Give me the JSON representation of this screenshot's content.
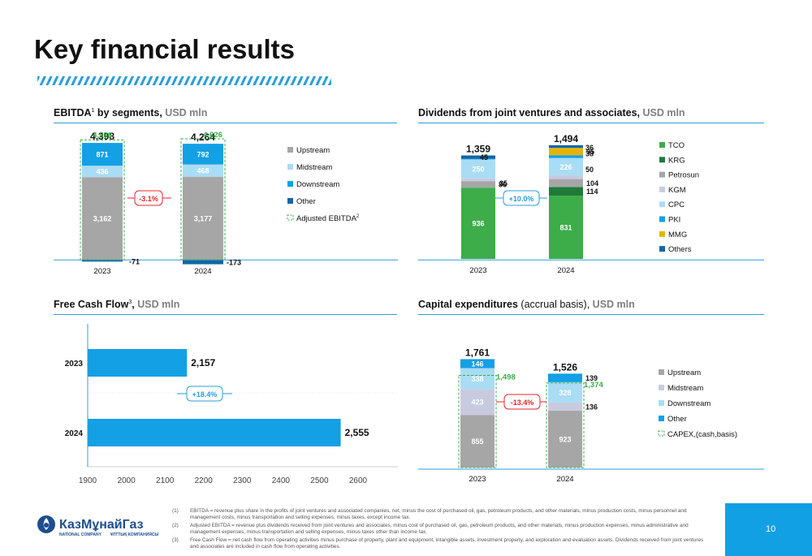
{
  "page": {
    "title": "Key financial results",
    "page_number": "10"
  },
  "colors": {
    "accent": "#2a9fdc",
    "upstream": "#a6a6a6",
    "midstream": "#b3b8d6",
    "midstream_light": "#a9dcf5",
    "downstream": "#13a0e4",
    "other": "#1166a6",
    "tco": "#3cad48",
    "krg": "#1f7a3a",
    "petrosun": "#a6a6a6",
    "kgm": "#c8cbe0",
    "cpc": "#a9dcf5",
    "pki": "#13a0e4",
    "mmg": "#e6b400",
    "others": "#1166a6",
    "badge_red": "#e8242b",
    "badge_blue": "#2a9fdc",
    "adjusted_green": "#3cad48"
  },
  "panels": {
    "ebitda": {
      "title": "EBITDA",
      "sup": "1",
      "title_rest": " by segments,",
      "unit": " USD mln"
    },
    "dividends": {
      "title": "Dividends from joint ventures and associates,",
      "unit": " USD mln"
    },
    "fcf": {
      "title": "Free Cash Flow",
      "sup": "3",
      "title_rest": ",",
      "unit": " USD mln"
    },
    "capex": {
      "title": "Capital expenditures",
      "note": " (accrual basis),",
      "unit": " USD mln"
    }
  },
  "chart_data": [
    {
      "id": "ebitda",
      "type": "bar",
      "stacked": true,
      "categories": [
        "2023",
        "2024"
      ],
      "series": [
        {
          "name": "Upstream",
          "values": [
            3162,
            3177
          ],
          "labels": [
            "3,162",
            "3,177"
          ],
          "color": "#a6a6a6"
        },
        {
          "name": "Midstream",
          "values": [
            436,
            468
          ],
          "labels": [
            "436",
            "468"
          ],
          "color": "#a9dcf5"
        },
        {
          "name": "Downstream",
          "values": [
            871,
            792
          ],
          "labels": [
            "871",
            "792"
          ],
          "color": "#13a0e4"
        },
        {
          "name": "Other",
          "values": [
            -71,
            -173
          ],
          "labels": [
            "-71",
            "-173"
          ],
          "color": "#1166a6"
        }
      ],
      "totals": [
        "4,398",
        "4,264"
      ],
      "adjusted": {
        "name": "Adjusted EBITDA",
        "sup": "2",
        "values": [
          4586,
          4626
        ],
        "labels": [
          "4,586",
          "4,626"
        ]
      },
      "change": "-3.1%",
      "ylim": [
        -200,
        4800
      ],
      "legend": "right"
    },
    {
      "id": "dividends",
      "type": "bar",
      "stacked": true,
      "categories": [
        "2023",
        "2024"
      ],
      "series": [
        {
          "name": "TCO",
          "values": [
            936,
            831
          ],
          "labels": [
            "936",
            "831"
          ],
          "color": "#3cad48"
        },
        {
          "name": "KRG",
          "values": [
            0,
            114
          ],
          "labels": [
            "",
            "114"
          ],
          "color": "#1f7a3a"
        },
        {
          "name": "Petrosun",
          "values": [
            86,
            104
          ],
          "labels": [
            "86",
            "104"
          ],
          "color": "#a6a6a6"
        },
        {
          "name": "KGM",
          "values": [
            35,
            50
          ],
          "labels": [
            "35",
            "50"
          ],
          "color": "#c8cbe0"
        },
        {
          "name": "CPC",
          "values": [
            250,
            226
          ],
          "labels": [
            "250",
            "226"
          ],
          "color": "#a9dcf5"
        },
        {
          "name": "PKI",
          "values": [
            7,
            38
          ],
          "labels": [
            "",
            "38"
          ],
          "color": "#13a0e4"
        },
        {
          "name": "MMG",
          "values": [
            0,
            95
          ],
          "labels": [
            "",
            "95"
          ],
          "color": "#e6b400"
        },
        {
          "name": "Others",
          "values": [
            45,
            36
          ],
          "labels": [
            "45",
            "36"
          ],
          "color": "#1166a6"
        }
      ],
      "totals": [
        "1,359",
        "1,494"
      ],
      "change": "+10.0%",
      "ylim": [
        0,
        1500
      ],
      "legend": "right"
    },
    {
      "id": "fcf",
      "type": "bar",
      "orientation": "horizontal",
      "categories": [
        "2023",
        "2024"
      ],
      "values": [
        2157,
        2555
      ],
      "labels": [
        "2,157",
        "2,555"
      ],
      "xlim": [
        1900,
        2600
      ],
      "xticks": [
        "1900",
        "2000",
        "2100",
        "2200",
        "2300",
        "2400",
        "2500",
        "2600"
      ],
      "change": "+18.4%",
      "color": "#13a0e4"
    },
    {
      "id": "capex",
      "type": "bar",
      "stacked": true,
      "categories": [
        "2023",
        "2024"
      ],
      "series": [
        {
          "name": "Upstream",
          "values": [
            855,
            923
          ],
          "labels": [
            "855",
            "923"
          ],
          "color": "#a6a6a6"
        },
        {
          "name": "Midstream",
          "values": [
            423,
            136
          ],
          "labels": [
            "423",
            "136"
          ],
          "color": "#c8cbe0"
        },
        {
          "name": "Downstream",
          "values": [
            338,
            328
          ],
          "labels": [
            "338",
            "328"
          ],
          "color": "#a9dcf5"
        },
        {
          "name": "Other",
          "values": [
            146,
            139
          ],
          "labels": [
            "146",
            "139"
          ],
          "color": "#13a0e4"
        }
      ],
      "totals": [
        "1,761",
        "1,526"
      ],
      "adjusted": {
        "name": "CAPEX,(cash,basis)",
        "values": [
          1498,
          1374
        ],
        "labels": [
          "1,498",
          "1,374"
        ]
      },
      "change": "-13.4%",
      "ylim": [
        0,
        1800
      ],
      "legend": "right"
    }
  ],
  "footnotes": [
    {
      "num": "(1)",
      "text": "EBITDA = revenue plus share in the profits of joint ventures and associated companies, net, minus the cost of purchased oil, gas, petroleum products, and other materials, minus production costs, minus personnel and management costs, minus transportation and selling expenses, minus taxes, except income tax."
    },
    {
      "num": "(2)",
      "text": "Adjusted EBITDA = revenue plus dividends received from joint ventures and associates, minus cost of purchased oil, gas, petroleum products, and other materials, minus production expenses, minus administrative and management expenses, minus transportation and selling expenses, minus taxes other than income tax."
    },
    {
      "num": "(3)",
      "text": "Free Cash Flow = net cash flow from operating activities minus purchase of property, plant and equipment, intangible assets, investment property, and exploration and evaluation assets. Dividends received from joint ventures and associates are included in cash flow from operating activities."
    }
  ],
  "logo": {
    "name": "КазМұнайГаз",
    "sub_left": "NATIONAL COMPANY",
    "sub_right": "ҰЛТТЫҚ КОМПАНИЯСЫ"
  }
}
